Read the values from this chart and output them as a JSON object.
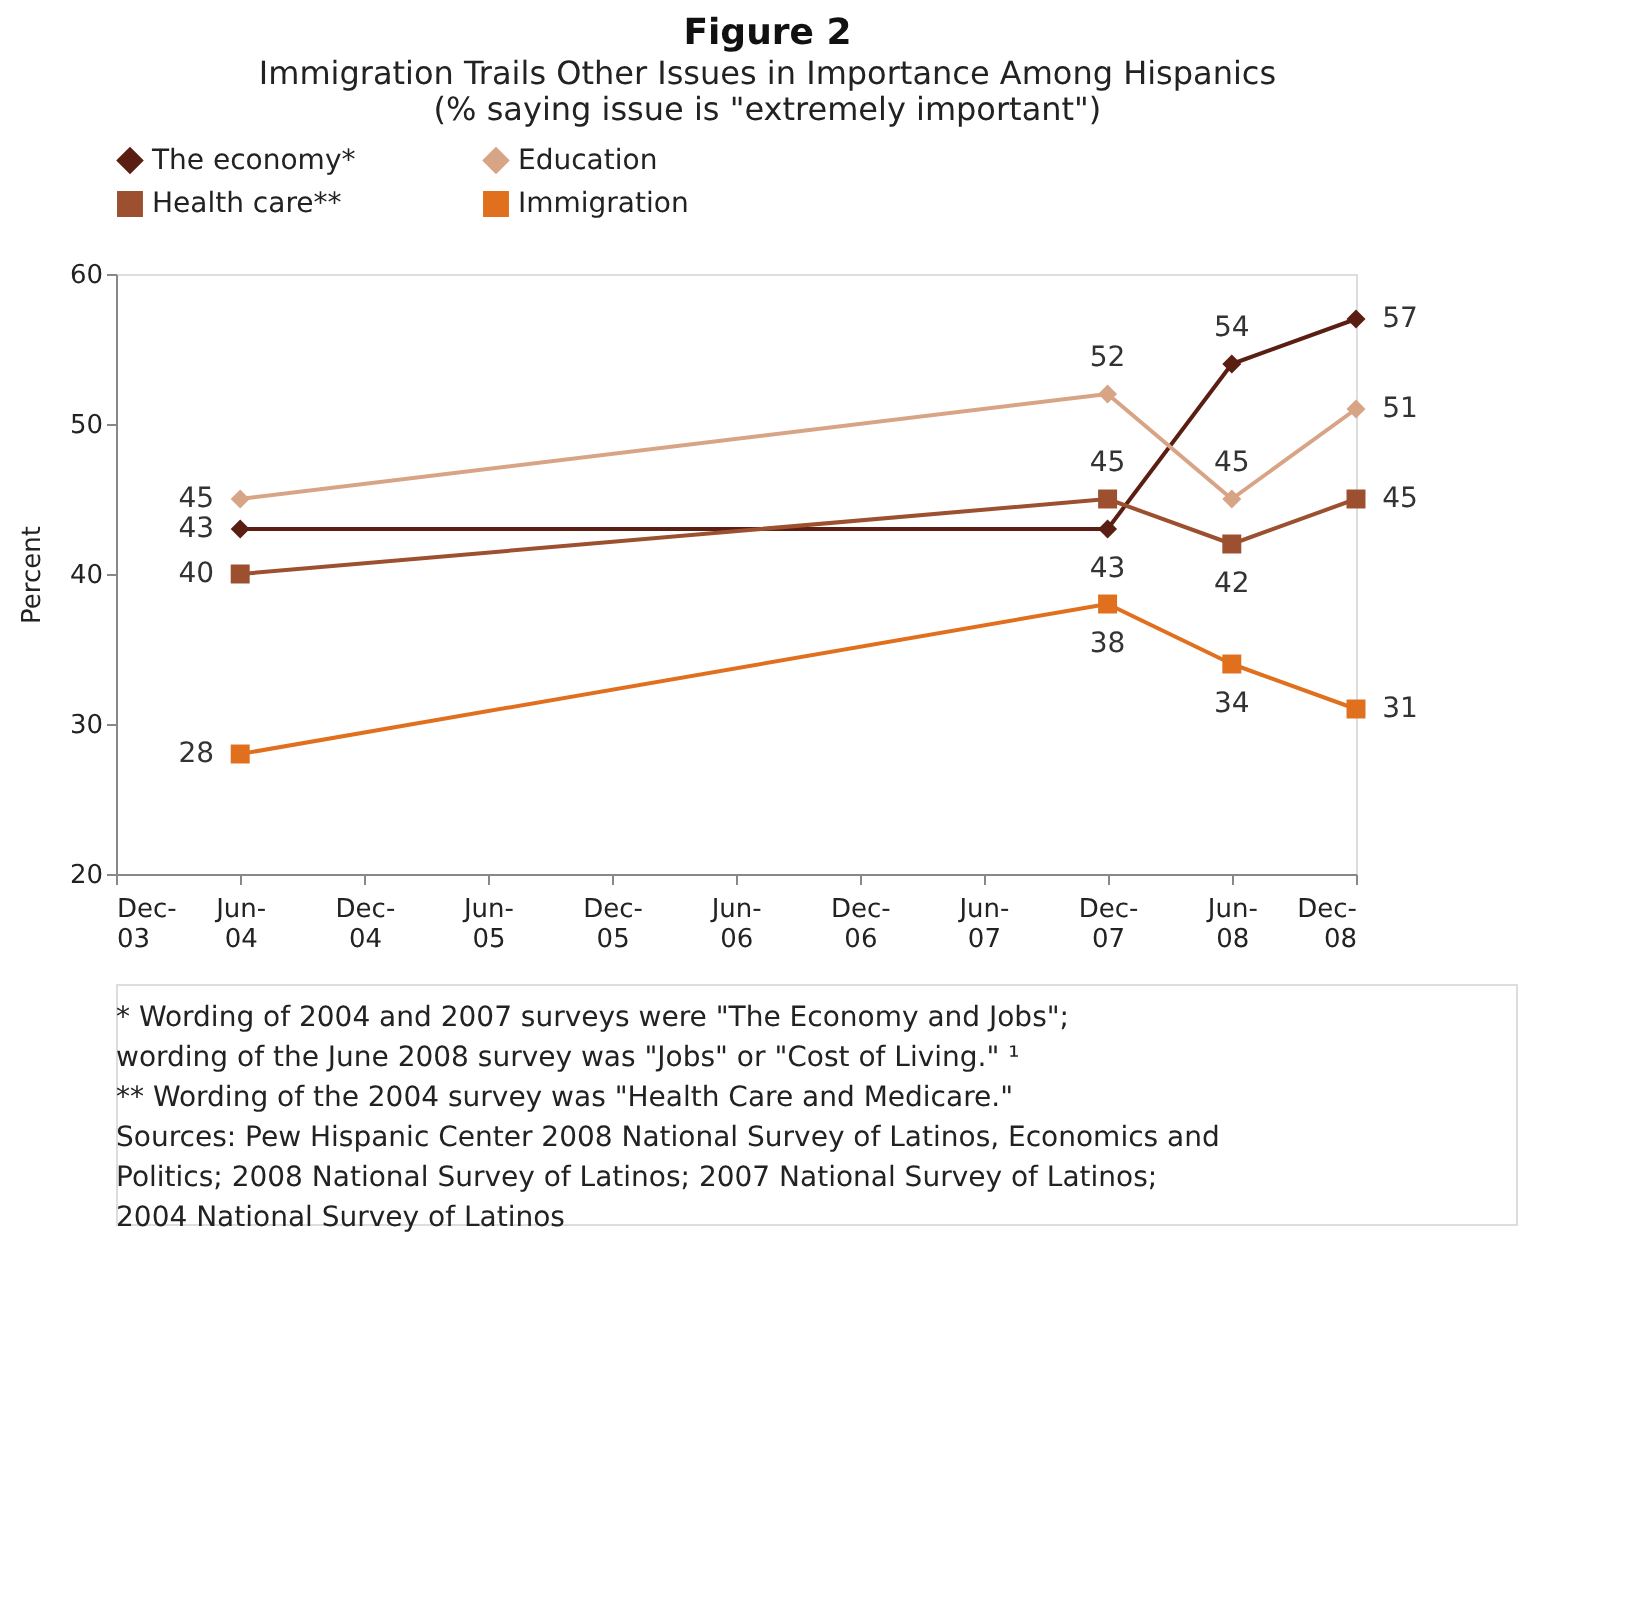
{
  "chart_data": {
    "type": "line",
    "title": "Figure 2",
    "subtitle": "Immigration Trails Other Issues in Importance Among Hispanics",
    "xlabel": null,
    "ylabel": "Percent",
    "x": [
      "2004-06",
      "2007-12",
      "2008-06",
      "2008-12"
    ],
    "xlim": [
      "2003-12",
      "2008-12"
    ],
    "xticks": [
      {
        "value": "2003-12",
        "label": "Dec-03"
      },
      {
        "value": "2004-06",
        "label": "Jun-04"
      },
      {
        "value": "2004-12",
        "label": "Dec-04"
      },
      {
        "value": "2005-06",
        "label": "Jun-05"
      },
      {
        "value": "2005-12",
        "label": "Dec-05"
      },
      {
        "value": "2006-06",
        "label": "Jun-06"
      },
      {
        "value": "2006-12",
        "label": "Dec-06"
      },
      {
        "value": "2007-06",
        "label": "Jun-07"
      },
      {
        "value": "2007-12",
        "label": "Dec-07"
      },
      {
        "value": "2008-06",
        "label": "Jun-08"
      },
      {
        "value": "2008-12",
        "label": "Dec-08"
      }
    ],
    "ylim": [
      20,
      60
    ],
    "yticks": [
      20,
      30,
      40,
      50,
      60
    ],
    "series": [
      {
        "name": "The economy*",
        "color": "#5a1e12",
        "marker": "diamond",
        "values": [
          43,
          43,
          54,
          57
        ]
      },
      {
        "name": "Education",
        "color": "#d8a486",
        "marker": "diamond",
        "values": [
          45,
          52,
          45,
          51
        ]
      },
      {
        "name": "Health care**",
        "color": "#9c5030",
        "marker": "square",
        "values": [
          40,
          45,
          42,
          45
        ]
      },
      {
        "name": "Immigration",
        "color": "#e0701e",
        "marker": "square",
        "values": [
          28,
          38,
          34,
          31
        ]
      }
    ],
    "data_labels": true,
    "grid": false,
    "legend": "top",
    "line_style": "solid",
    "annotations": [
      "(% saying issue is \"extremely important\")",
      "* Wording of 2004 and 2007 surveys were \"The Economy and Jobs\";",
      "  wording of the June 2008 survey was \"Jobs\" or \"Cost of Living.\" ¹",
      "** Wording of the 2004 survey was \"Health Care and Medicare.\"",
      "Sources: Pew Hispanic Center 2008 National Survey of Latinos, Economics and",
      "Politics; 2008 National Survey of Latinos; 2007 National Survey of Latinos;",
      "2004 National Survey of Latinos"
    ]
  }
}
